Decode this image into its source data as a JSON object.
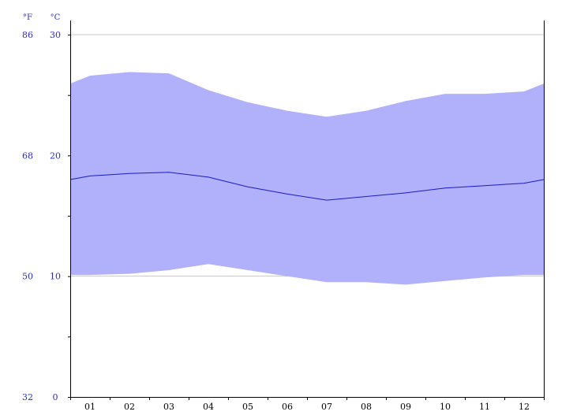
{
  "colors": {
    "band_fill": "#b0b0fb",
    "mean_line": "#1a1acc",
    "label_blue": "#2b2bcc",
    "grid": "#c8c8c8",
    "axis": "#000000"
  },
  "units": {
    "fahrenheit": "°F",
    "celsius": "°C"
  },
  "chart_data": {
    "type": "area",
    "title": "",
    "xlabel": "",
    "ylabel": "",
    "categories": [
      "01",
      "02",
      "03",
      "04",
      "05",
      "06",
      "07",
      "08",
      "09",
      "10",
      "11",
      "12"
    ],
    "ylim": [
      0,
      30
    ],
    "grid": true,
    "legend": "none",
    "y_ticks_celsius": [
      "30",
      "20",
      "10",
      "0"
    ],
    "y_ticks_fahrenheit": [
      "86",
      "68",
      "50",
      "32"
    ],
    "series": [
      {
        "role": "max",
        "values": [
          26.6,
          26.9,
          26.8,
          25.4,
          24.4,
          23.7,
          23.2,
          23.7,
          24.5,
          25.1,
          25.1,
          25.3
        ]
      },
      {
        "role": "mean",
        "values": [
          18.3,
          18.5,
          18.6,
          18.2,
          17.4,
          16.8,
          16.3,
          16.6,
          16.9,
          17.3,
          17.5,
          17.7
        ]
      },
      {
        "role": "min",
        "values": [
          10.1,
          10.2,
          10.5,
          11.0,
          10.5,
          10.0,
          9.5,
          9.5,
          9.3,
          9.6,
          9.9,
          10.1
        ]
      }
    ]
  }
}
